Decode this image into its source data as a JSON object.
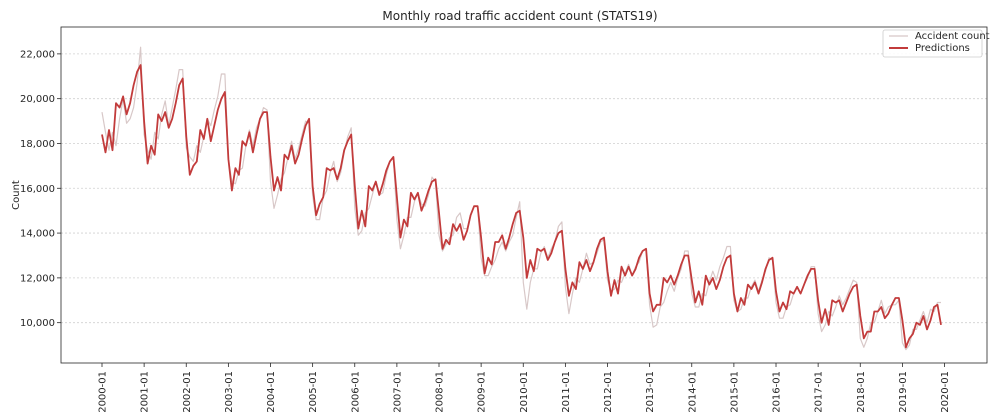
{
  "chart_data": {
    "type": "line",
    "title": "Monthly road traffic accident count (STATS19)",
    "xlabel": "",
    "ylabel": "Count",
    "ylim": [
      8200,
      23200
    ],
    "yticks": [
      10000,
      12000,
      14000,
      16000,
      18000,
      20000,
      22000
    ],
    "ytick_labels": [
      "10,000",
      "12,000",
      "14,000",
      "16,000",
      "18,000",
      "20,000",
      "22,000"
    ],
    "xtick_labels": [
      "2000-01",
      "2001-01",
      "2002-01",
      "2003-01",
      "2004-01",
      "2005-01",
      "2006-01",
      "2007-01",
      "2008-01",
      "2009-01",
      "2010-01",
      "2011-01",
      "2012-01",
      "2013-01",
      "2014-01",
      "2015-01",
      "2016-01",
      "2017-01",
      "2018-01",
      "2019-01",
      "2020-01"
    ],
    "grid": "horizontal",
    "legend_position": "top-right",
    "x_start": "2000-01",
    "x_end": "2019-12",
    "series": [
      {
        "name": "Accident count",
        "color": "#d8c8c8",
        "values": [
          19400,
          18500,
          17700,
          18500,
          17900,
          19100,
          20000,
          18900,
          19100,
          19600,
          20700,
          22300,
          18400,
          17700,
          17300,
          18500,
          18200,
          19300,
          19900,
          18800,
          19600,
          20400,
          21300,
          21300,
          17800,
          17400,
          17200,
          17900,
          17600,
          18300,
          19100,
          18800,
          19500,
          20100,
          21100,
          21100,
          17300,
          16300,
          16200,
          16800,
          16900,
          17900,
          18600,
          17900,
          18700,
          19100,
          19600,
          19500,
          16300,
          15100,
          15700,
          16400,
          16700,
          17400,
          18100,
          17300,
          17800,
          18400,
          19000,
          18900,
          15700,
          14600,
          14600,
          15600,
          15900,
          16700,
          17200,
          16300,
          16700,
          17600,
          18300,
          18700,
          15100,
          13900,
          14100,
          14900,
          15100,
          15700,
          16300,
          15700,
          15800,
          16600,
          17200,
          17400,
          14600,
          13300,
          13900,
          14700,
          14700,
          15400,
          15800,
          15300,
          15200,
          15700,
          16500,
          16300,
          13900,
          13200,
          13500,
          13800,
          13900,
          14700,
          14900,
          14200,
          14200,
          14800,
          15200,
          15200,
          12900,
          12100,
          12100,
          12500,
          12800,
          13300,
          13600,
          13200,
          13600,
          13900,
          14700,
          15400,
          11800,
          10600,
          11800,
          12400,
          12400,
          13100,
          13400,
          12900,
          13300,
          13600,
          14300,
          14500,
          11600,
          10400,
          11300,
          12000,
          11800,
          12400,
          13100,
          12600,
          12700,
          13100,
          13600,
          13700,
          11900,
          11400,
          11500,
          11900,
          11800,
          12200,
          12600,
          12100,
          12500,
          12700,
          13200,
          13300,
          10800,
          9800,
          9900,
          10700,
          10900,
          11400,
          11800,
          11400,
          12000,
          12400,
          13200,
          13200,
          11300,
          10700,
          10700,
          11300,
          11200,
          11800,
          12300,
          11900,
          12500,
          12900,
          13400,
          13400,
          11000,
          10500,
          10600,
          11100,
          11100,
          11600,
          11900,
          11400,
          11900,
          12300,
          12900,
          12800,
          10900,
          10200,
          10200,
          10700,
          10800,
          11300,
          11600,
          11300,
          11700,
          12000,
          12500,
          12500,
          10400,
          9600,
          9900,
          10500,
          10300,
          10700,
          11200,
          10800,
          11100,
          11500,
          11900,
          11800,
          9300,
          8900,
          9300,
          10000,
          10000,
          10500,
          11000,
          10400,
          10700,
          10800,
          10800,
          11000,
          9100,
          8800,
          9000,
          9700,
          9700,
          10100,
          10500,
          10000,
          10600,
          10500,
          10900,
          10900
        ]
      },
      {
        "name": "Predictions",
        "color": "#c23b3b",
        "values": [
          18400,
          17600,
          18600,
          17700,
          19800,
          19600,
          20100,
          19300,
          19800,
          20600,
          21200,
          21500,
          19000,
          17100,
          17900,
          17500,
          19300,
          19000,
          19400,
          18700,
          19100,
          19800,
          20600,
          20900,
          18300,
          16600,
          17000,
          17200,
          18600,
          18200,
          19100,
          18100,
          18800,
          19500,
          20000,
          20300,
          17300,
          15900,
          16900,
          16600,
          18100,
          17900,
          18500,
          17600,
          18400,
          19100,
          19400,
          19400,
          17400,
          15900,
          16500,
          15900,
          17500,
          17300,
          17900,
          17100,
          17500,
          18200,
          18800,
          19100,
          16100,
          14800,
          15300,
          15600,
          16900,
          16800,
          16900,
          16400,
          16900,
          17700,
          18100,
          18400,
          16100,
          14200,
          15000,
          14300,
          16100,
          15900,
          16300,
          15700,
          16200,
          16800,
          17200,
          17400,
          15600,
          13800,
          14600,
          14300,
          15800,
          15500,
          15800,
          15000,
          15400,
          15900,
          16300,
          16400,
          14900,
          13300,
          13700,
          13500,
          14400,
          14100,
          14400,
          13700,
          14100,
          14800,
          15200,
          15200,
          13800,
          12200,
          12900,
          12600,
          13600,
          13600,
          13900,
          13300,
          13800,
          14400,
          14900,
          15000,
          13800,
          12000,
          12800,
          12300,
          13300,
          13200,
          13300,
          12800,
          13100,
          13600,
          14000,
          14100,
          12400,
          11200,
          11800,
          11500,
          12700,
          12400,
          12800,
          12300,
          12700,
          13300,
          13700,
          13800,
          12300,
          11200,
          11900,
          11300,
          12500,
          12100,
          12500,
          12100,
          12400,
          12900,
          13200,
          13300,
          11300,
          10500,
          10800,
          10800,
          12000,
          11800,
          12100,
          11700,
          12100,
          12600,
          13000,
          13000,
          11900,
          10900,
          11400,
          10800,
          12100,
          11700,
          12000,
          11500,
          11900,
          12500,
          12900,
          13000,
          11300,
          10500,
          11100,
          10800,
          11700,
          11500,
          11800,
          11300,
          11800,
          12400,
          12800,
          12900,
          11400,
          10500,
          10900,
          10600,
          11400,
          11300,
          11600,
          11300,
          11700,
          12100,
          12400,
          12400,
          11000,
          10000,
          10600,
          9900,
          11000,
          10900,
          11000,
          10500,
          10900,
          11300,
          11600,
          11700,
          10300,
          9300,
          9600,
          9600,
          10500,
          10500,
          10700,
          10200,
          10400,
          10800,
          11100,
          11100,
          10100,
          8900,
          9300,
          9500,
          10000,
          9900,
          10300,
          9700,
          10100,
          10700,
          10800,
          9900
        ]
      }
    ]
  }
}
